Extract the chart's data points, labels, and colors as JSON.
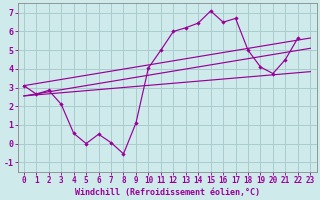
{
  "xlabel": "Windchill (Refroidissement éolien,°C)",
  "background_color": "#ceeaea",
  "grid_color": "#aacccc",
  "line_color": "#990099",
  "xlim": [
    -0.5,
    23.5
  ],
  "ylim": [
    -1.5,
    7.5
  ],
  "xticks": [
    0,
    1,
    2,
    3,
    4,
    5,
    6,
    7,
    8,
    9,
    10,
    11,
    12,
    13,
    14,
    15,
    16,
    17,
    18,
    19,
    20,
    21,
    22,
    23
  ],
  "yticks": [
    -1,
    0,
    1,
    2,
    3,
    4,
    5,
    6,
    7
  ],
  "main_line_x": [
    0,
    1,
    2,
    3,
    4,
    5,
    6,
    7,
    8,
    9,
    10,
    11,
    12,
    13,
    14,
    15,
    16,
    17,
    18,
    19,
    20,
    21,
    22
  ],
  "main_line_y": [
    3.1,
    2.65,
    2.85,
    2.1,
    0.55,
    0.0,
    0.5,
    0.05,
    -0.55,
    1.1,
    4.05,
    5.0,
    6.0,
    6.2,
    6.45,
    7.1,
    6.5,
    6.7,
    5.0,
    4.1,
    3.75,
    4.5,
    5.65
  ],
  "trend_line1_x": [
    0,
    23
  ],
  "trend_line1_y": [
    2.55,
    5.1
  ],
  "trend_line2_x": [
    0,
    23
  ],
  "trend_line2_y": [
    2.55,
    3.85
  ],
  "trend_line3_x": [
    0,
    23
  ],
  "trend_line3_y": [
    3.1,
    5.65
  ],
  "xlabel_fontsize": 6,
  "tick_fontsize": 5.5
}
